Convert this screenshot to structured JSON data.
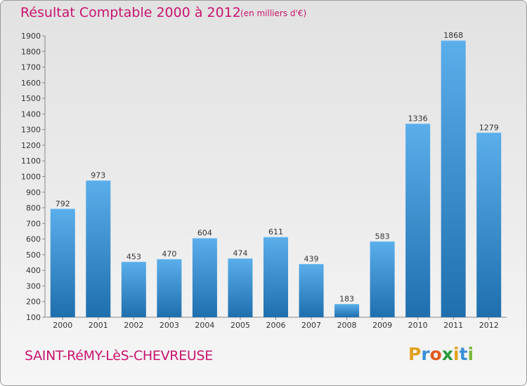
{
  "title": "Résultat Comptable 2000 à 2012",
  "subtitle": "(en milliers d'€)",
  "city": "SAINT-RéMY-LèS-CHEVREUSE",
  "logo": {
    "letters": [
      "P",
      "r",
      "o",
      "x",
      "i",
      "t",
      "i"
    ],
    "colors": [
      "#e0a020",
      "#3a8fd6",
      "#e05a1e",
      "#2a9a3a",
      "#e0a020",
      "#3a8fd6",
      "#7ab83a"
    ]
  },
  "colors": {
    "bar_top": "#5aaeea",
    "bar_bottom": "#1f6fae",
    "accent": "#c8146e"
  },
  "chart_data": {
    "type": "bar",
    "categories": [
      "2000",
      "2001",
      "2002",
      "2003",
      "2004",
      "2005",
      "2006",
      "2007",
      "2008",
      "2009",
      "2010",
      "2011",
      "2012"
    ],
    "values": [
      792,
      973,
      453,
      470,
      604,
      474,
      611,
      439,
      183,
      583,
      1336,
      1868,
      1279
    ],
    "ylim": [
      100,
      1900
    ],
    "yticks": [
      100,
      200,
      300,
      400,
      500,
      600,
      700,
      800,
      900,
      1000,
      1100,
      1200,
      1300,
      1400,
      1500,
      1600,
      1700,
      1800,
      1900
    ],
    "grid": false,
    "xlabel": "",
    "ylabel": ""
  }
}
